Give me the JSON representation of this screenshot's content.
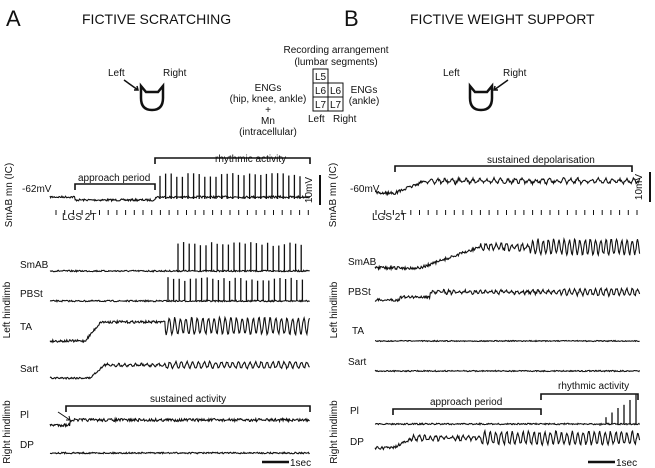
{
  "panel_a": {
    "letter": "A",
    "title": "FICTIVE SCRATCHING",
    "cat": {
      "left": "Left",
      "right": "Right"
    },
    "recording": {
      "title": "Recording arrangement",
      "subtitle": "(lumbar segments)",
      "left_lines": [
        "ENGs",
        "(hip, knee, ankle)",
        "+",
        "Mn",
        "(intracellular)"
      ],
      "segments": [
        "L5",
        "L6",
        "L6",
        "L7",
        "L7"
      ],
      "side_left": "Left",
      "side_right": "Right",
      "right_lines": [
        "ENGs",
        "(ankle)"
      ]
    },
    "traces": {
      "ic_label": "SmAB mn  (IC)",
      "rest": "-62mV",
      "approach": "approach period",
      "rhythmic": "rhythmic activity",
      "scale_v": "10mV",
      "stim": "LGS 2T",
      "smab": "SmAB",
      "pbst": "PBSt",
      "ta": "TA",
      "sart": "Sart",
      "left_limb": "Left hindlimb",
      "sustained": "sustained activity",
      "pl": "Pl",
      "dp": "DP",
      "right_limb": "Right hindlimb",
      "scale_t": "1sec"
    }
  },
  "panel_b": {
    "letter": "B",
    "title": "FICTIVE WEIGHT SUPPORT",
    "cat": {
      "left": "Left",
      "right": "Right"
    },
    "traces": {
      "ic_label": "SmAB mn  (IC)",
      "rest": "-60mV",
      "sustained": "sustained depolarisation",
      "scale_v": "10mV",
      "stim": "LGS 2T",
      "smab": "SmAB",
      "pbst": "PBSt",
      "ta": "TA",
      "sart": "Sart",
      "left_limb": "Left hindlimb",
      "approach": "approach period",
      "rhythmic": "rhythmic activity",
      "pl": "Pl",
      "dp": "DP",
      "right_limb": "Right hindlimb",
      "scale_t": "1sec"
    }
  }
}
